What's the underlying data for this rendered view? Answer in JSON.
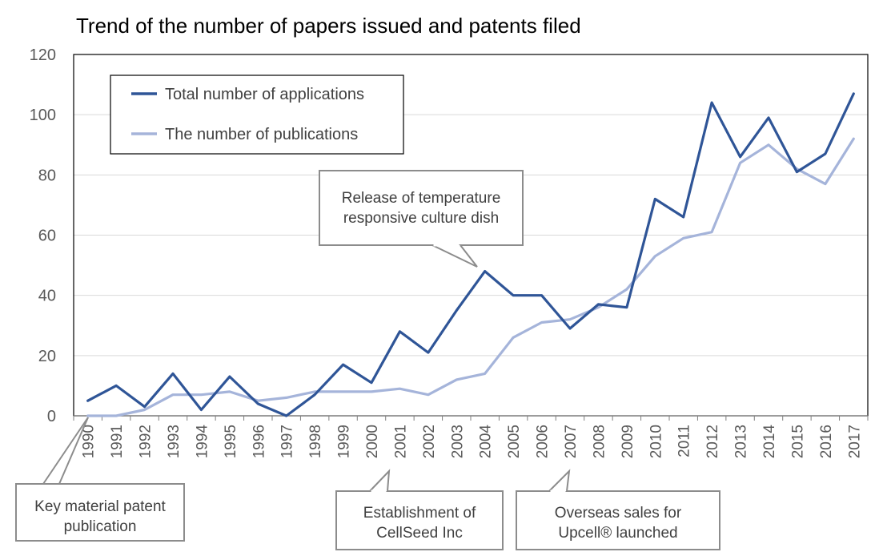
{
  "chart_data": {
    "type": "line",
    "title": "Trend of the number of papers issued and patents filed",
    "xlabel": "",
    "ylabel": "",
    "ylim": [
      0,
      120
    ],
    "yticks": [
      0,
      20,
      40,
      60,
      80,
      100,
      120
    ],
    "grid": "horizontal",
    "legend_position": "top-left",
    "categories": [
      "1990",
      "1991",
      "1992",
      "1993",
      "1994",
      "1995",
      "1996",
      "1997",
      "1998",
      "1999",
      "2000",
      "2001",
      "2002",
      "2003",
      "2004",
      "2005",
      "2006",
      "2007",
      "2008",
      "2009",
      "2010",
      "2011",
      "2012",
      "2013",
      "2014",
      "2015",
      "2016",
      "2017"
    ],
    "series": [
      {
        "name": "Total number of applications",
        "color": "#2f5597",
        "values": [
          5,
          10,
          3,
          14,
          2,
          13,
          4,
          0,
          7,
          17,
          11,
          28,
          21,
          35,
          48,
          40,
          40,
          29,
          37,
          36,
          72,
          66,
          104,
          86,
          99,
          81,
          87,
          107
        ]
      },
      {
        "name": "The number of publications",
        "color": "#a5b4da",
        "values": [
          0,
          0,
          2,
          7,
          7,
          8,
          5,
          6,
          8,
          8,
          8,
          9,
          7,
          12,
          14,
          26,
          31,
          32,
          36,
          42,
          53,
          59,
          61,
          84,
          90,
          82,
          77,
          92
        ]
      }
    ],
    "annotations": [
      {
        "lines": [
          "Release of temperature",
          "responsive culture dish"
        ],
        "points_to": "2004"
      },
      {
        "lines": [
          "Key material patent",
          "publication"
        ],
        "points_to": "1990-1991"
      },
      {
        "lines": [
          "Establishment of",
          "CellSeed Inc"
        ],
        "points_to": "2001"
      },
      {
        "lines": [
          "Overseas sales for",
          "Upcell® launched"
        ],
        "points_to": "2007"
      }
    ]
  }
}
